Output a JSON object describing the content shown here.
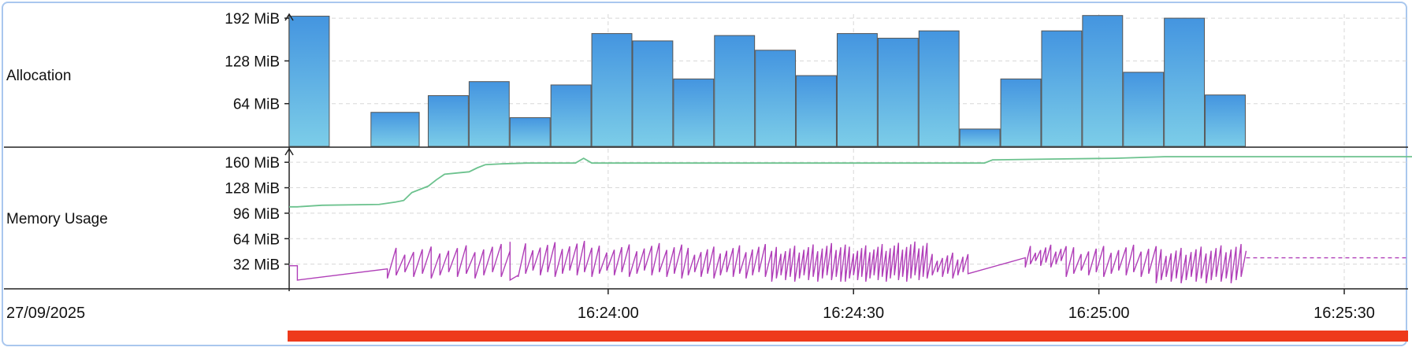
{
  "date_label": "27/09/2025",
  "chart_data": [
    {
      "type": "bar",
      "row_label": "Allocation",
      "unit": "MiB",
      "yticks": [
        64,
        128,
        192
      ],
      "ytick_labels": [
        "64 MiB",
        "128 MiB",
        "192 MiB"
      ],
      "ylim": [
        0,
        198
      ],
      "bar_color": "#5aa6e0",
      "bars": [
        {
          "start": "16:23:21",
          "end": "16:23:26",
          "value": 195
        },
        {
          "start": "16:23:31",
          "end": "16:23:37",
          "value": 51
        },
        {
          "start": "16:23:38",
          "end": "16:23:43",
          "value": 76
        },
        {
          "start": "16:23:43",
          "end": "16:23:48",
          "value": 97
        },
        {
          "start": "16:23:48",
          "end": "16:23:53",
          "value": 43
        },
        {
          "start": "16:23:53",
          "end": "16:23:58",
          "value": 92
        },
        {
          "start": "16:23:58",
          "end": "16:24:03",
          "value": 169
        },
        {
          "start": "16:24:03",
          "end": "16:24:08",
          "value": 158
        },
        {
          "start": "16:24:08",
          "end": "16:24:13",
          "value": 101
        },
        {
          "start": "16:24:13",
          "end": "16:24:18",
          "value": 166
        },
        {
          "start": "16:24:18",
          "end": "16:24:23",
          "value": 144
        },
        {
          "start": "16:24:23",
          "end": "16:24:28",
          "value": 106
        },
        {
          "start": "16:24:28",
          "end": "16:24:33",
          "value": 169
        },
        {
          "start": "16:24:33",
          "end": "16:24:38",
          "value": 162
        },
        {
          "start": "16:24:38",
          "end": "16:24:43",
          "value": 173
        },
        {
          "start": "16:24:43",
          "end": "16:24:48",
          "value": 26
        },
        {
          "start": "16:24:48",
          "end": "16:24:53",
          "value": 101
        },
        {
          "start": "16:24:53",
          "end": "16:24:58",
          "value": 173
        },
        {
          "start": "16:24:58",
          "end": "16:25:03",
          "value": 196
        },
        {
          "start": "16:25:03",
          "end": "16:25:08",
          "value": 111
        },
        {
          "start": "16:25:08",
          "end": "16:25:13",
          "value": 192
        },
        {
          "start": "16:25:13",
          "end": "16:25:18",
          "value": 77
        }
      ]
    },
    {
      "type": "line",
      "row_label": "Memory Usage",
      "unit": "MiB",
      "yticks": [
        32,
        64,
        96,
        128,
        160
      ],
      "ytick_labels": [
        "32 MiB",
        "64 MiB",
        "96 MiB",
        "128 MiB",
        "160 MiB"
      ],
      "ylim": [
        0,
        176
      ],
      "series": [
        {
          "color": "#6cc28e",
          "points": [
            [
              "16:23:21",
              104
            ],
            [
              "16:23:22",
              104
            ],
            [
              "16:23:25",
              106
            ],
            [
              "16:23:32",
              107
            ],
            [
              "16:23:34",
              110
            ],
            [
              "16:23:35",
              112
            ],
            [
              "16:23:36",
              122
            ],
            [
              "16:23:38",
              130
            ],
            [
              "16:23:39",
              138
            ],
            [
              "16:23:40",
              145
            ],
            [
              "16:23:42",
              147
            ],
            [
              "16:23:43",
              148
            ],
            [
              "16:23:44",
              153
            ],
            [
              "16:23:45",
              157
            ],
            [
              "16:23:47",
              158
            ],
            [
              "16:23:50",
              159
            ],
            [
              "16:23:56",
              159
            ],
            [
              "16:23:57",
              165
            ],
            [
              "16:23:58",
              159
            ],
            [
              "16:24:38",
              159
            ],
            [
              "16:24:46",
              159
            ],
            [
              "16:24:47",
              163
            ],
            [
              "16:24:54",
              164
            ],
            [
              "16:25:02",
              165
            ],
            [
              "16:25:08",
              167
            ],
            [
              "16:25:35",
              167
            ],
            [
              "16:25:48",
              167
            ]
          ]
        },
        {
          "color": "#b03fb8",
          "dashed_tail_from": "16:25:18",
          "segments": [
            {
              "type": "line",
              "points": [
                [
                  "16:23:21",
                  30
                ],
                [
                  "16:23:22",
                  30
                ],
                [
                  "16:23:22",
                  12
                ],
                [
                  "16:23:33",
                  26
                ]
              ]
            },
            {
              "type": "saw",
              "start": "16:23:33",
              "end": "16:23:48",
              "low": 14,
              "high": 58,
              "teeth": 14
            },
            {
              "type": "line",
              "points": [
                [
                  "16:23:48",
                  60
                ],
                [
                  "16:23:48",
                  12
                ],
                [
                  "16:23:49",
                  18
                ]
              ]
            },
            {
              "type": "saw",
              "start": "16:23:49",
              "end": "16:23:58",
              "low": 16,
              "high": 62,
              "teeth": 10
            },
            {
              "type": "saw",
              "start": "16:23:58",
              "end": "16:24:09",
              "low": 16,
              "high": 60,
              "teeth": 12
            },
            {
              "type": "saw",
              "start": "16:24:09",
              "end": "16:24:20",
              "low": 14,
              "high": 58,
              "teeth": 14
            },
            {
              "type": "saw",
              "start": "16:24:20",
              "end": "16:24:29",
              "low": 10,
              "high": 60,
              "teeth": 16
            },
            {
              "type": "saw",
              "start": "16:24:29",
              "end": "16:24:39",
              "low": 10,
              "high": 62,
              "teeth": 20
            },
            {
              "type": "saw",
              "start": "16:24:39",
              "end": "16:24:44",
              "low": 14,
              "high": 48,
              "teeth": 8
            },
            {
              "type": "line",
              "points": [
                [
                  "16:24:44",
                  20
                ],
                [
                  "16:24:51",
                  40
                ]
              ]
            },
            {
              "type": "saw",
              "start": "16:24:51",
              "end": "16:24:56",
              "low": 28,
              "high": 58,
              "teeth": 8
            },
            {
              "type": "saw",
              "start": "16:24:56",
              "end": "16:25:07",
              "low": 16,
              "high": 58,
              "teeth": 12
            },
            {
              "type": "saw",
              "start": "16:25:07",
              "end": "16:25:18",
              "low": 8,
              "high": 58,
              "teeth": 18
            }
          ],
          "tail_value": 40,
          "tail_end": "16:25:48"
        }
      ]
    }
  ],
  "time_axis": {
    "ticks": [
      "16:24:00",
      "16:24:30",
      "16:25:00",
      "16:25:30"
    ],
    "range": [
      "16:23:21",
      "16:25:48"
    ]
  },
  "range_bar_color": "#ee3a1b"
}
